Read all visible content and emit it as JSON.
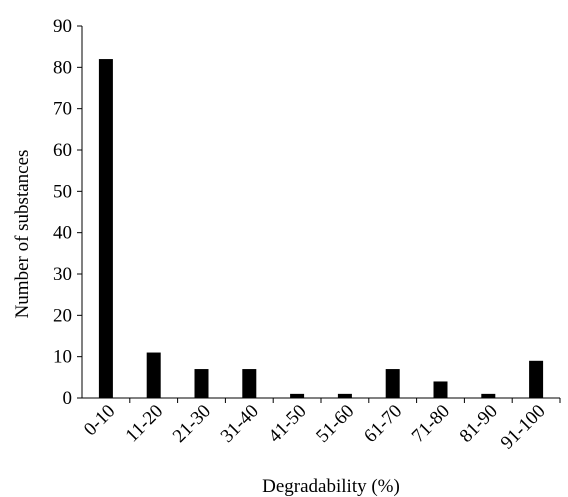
{
  "chart_data": {
    "type": "bar",
    "categories": [
      "0-10",
      "11-20",
      "21-30",
      "31-40",
      "41-50",
      "51-60",
      "61-70",
      "71-80",
      "81-90",
      "91-100"
    ],
    "values": [
      82,
      11,
      7,
      7,
      1,
      1,
      7,
      4,
      1,
      9
    ],
    "title": "",
    "xlabel": "Degradability (%)",
    "ylabel": "Number of substances",
    "ylim": [
      0,
      90
    ],
    "yticks": [
      0,
      10,
      20,
      30,
      40,
      50,
      60,
      70,
      80,
      90
    ],
    "grid": false,
    "bar_color": "#000000"
  }
}
